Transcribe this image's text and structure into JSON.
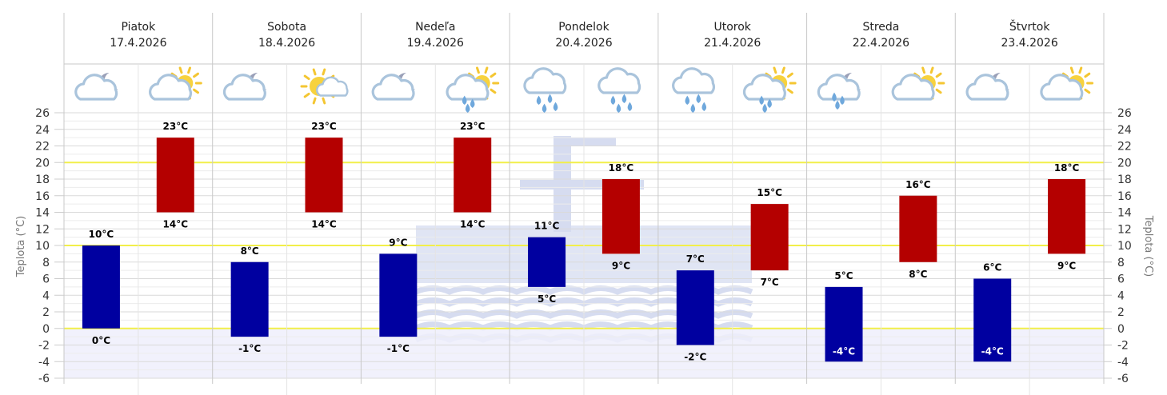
{
  "chart_data": {
    "type": "bar",
    "ylabel": "Teplota (°C)",
    "ylim": [
      -6,
      26
    ],
    "y_ticks": [
      26,
      24,
      22,
      20,
      18,
      16,
      14,
      12,
      10,
      8,
      6,
      4,
      2,
      0,
      -2,
      -4,
      -6
    ],
    "reference_lines": [
      0,
      10,
      20
    ],
    "grid": true,
    "days": [
      {
        "name": "Piatok",
        "date": "17.4.2026",
        "night": {
          "low": 0,
          "high": 10,
          "low_label": "0°C",
          "high_label": "10°C",
          "icon": "cloud-moon-icon"
        },
        "day": {
          "low": 14,
          "high": 23,
          "low_label": "14°C",
          "high_label": "23°C",
          "icon": "cloud-sun-icon"
        }
      },
      {
        "name": "Sobota",
        "date": "18.4.2026",
        "night": {
          "low": -1,
          "high": 8,
          "low_label": "-1°C",
          "high_label": "8°C",
          "icon": "cloud-moon-icon"
        },
        "day": {
          "low": 14,
          "high": 23,
          "low_label": "14°C",
          "high_label": "23°C",
          "icon": "sun-cloud-icon"
        }
      },
      {
        "name": "Nedeľa",
        "date": "19.4.2026",
        "night": {
          "low": -1,
          "high": 9,
          "low_label": "-1°C",
          "high_label": "9°C",
          "icon": "cloud-moon-icon"
        },
        "day": {
          "low": 14,
          "high": 23,
          "low_label": "14°C",
          "high_label": "23°C",
          "icon": "cloud-sun-drizzle-icon"
        }
      },
      {
        "name": "Pondelok",
        "date": "20.4.2026",
        "night": {
          "low": 5,
          "high": 11,
          "low_label": "5°C",
          "high_label": "11°C",
          "icon": "rain-cloud-icon"
        },
        "day": {
          "low": 9,
          "high": 18,
          "low_label": "9°C",
          "high_label": "18°C",
          "icon": "rain-cloud-icon"
        }
      },
      {
        "name": "Utorok",
        "date": "21.4.2026",
        "night": {
          "low": -2,
          "high": 7,
          "low_label": "-2°C",
          "high_label": "7°C",
          "icon": "rain-cloud-icon"
        },
        "day": {
          "low": 7,
          "high": 15,
          "low_label": "7°C",
          "high_label": "15°C",
          "icon": "cloud-sun-drizzle-icon"
        }
      },
      {
        "name": "Streda",
        "date": "22.4.2026",
        "night": {
          "low": -4,
          "high": 5,
          "low_label": "-4°C",
          "high_label": "5°C",
          "icon": "cloud-moon-drizzle-icon"
        },
        "day": {
          "low": 8,
          "high": 16,
          "low_label": "8°C",
          "high_label": "16°C",
          "icon": "cloud-sun-icon"
        }
      },
      {
        "name": "Štvrtok",
        "date": "23.4.2026",
        "night": {
          "low": -4,
          "high": 6,
          "low_label": "-4°C",
          "high_label": "6°C",
          "icon": "cloud-moon-icon"
        },
        "day": {
          "low": 9,
          "high": 18,
          "low_label": "9°C",
          "high_label": "18°C",
          "icon": "cloud-sun-icon"
        }
      }
    ]
  },
  "colors": {
    "night_bar": "#0000a0",
    "day_bar": "#b40000",
    "reference_line": "#f2ef4a",
    "below_zero_fill": "#eeeefb",
    "grid": "#e2e2e2",
    "separator": "#c8c8c8",
    "watermark": "#d6dcf0"
  }
}
